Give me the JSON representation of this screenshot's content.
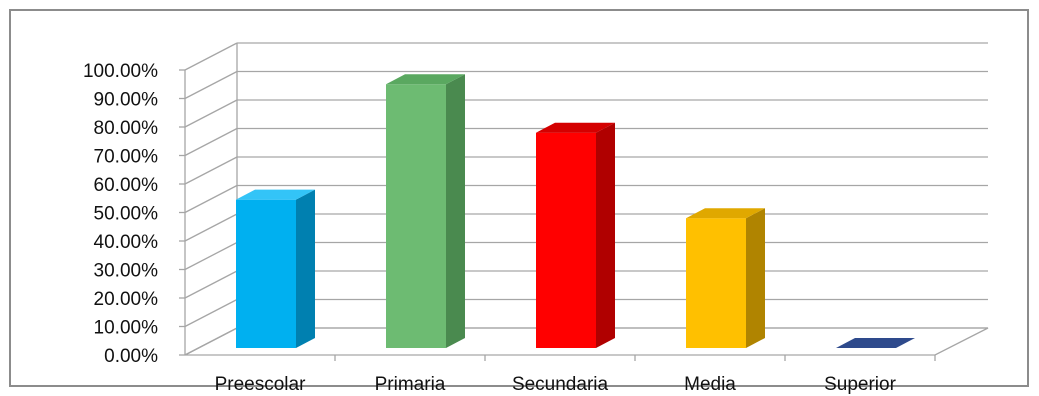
{
  "chart_data": {
    "type": "bar",
    "title": "",
    "xlabel": "",
    "ylabel": "",
    "categories": [
      "Preescolar",
      "Primaria",
      "Secundaria",
      "Media",
      "Superior"
    ],
    "values": [
      54.5,
      95.0,
      78.0,
      48.0,
      0.5
    ],
    "ylim": [
      0,
      100
    ],
    "yticks": [
      "0.00%",
      "10.00%",
      "20.00%",
      "30.00%",
      "40.00%",
      "50.00%",
      "60.00%",
      "70.00%",
      "80.00%",
      "90.00%",
      "100.00%"
    ],
    "grid": true,
    "style": "3d-column",
    "colors": {
      "Preescolar": {
        "front": "#00b0f0",
        "side": "#0080b0",
        "top": "#33c4f7"
      },
      "Primaria": {
        "front": "#6dbb72",
        "side": "#4a8a4f",
        "top": "#5aa860"
      },
      "Secundaria": {
        "front": "#ff0000",
        "side": "#b00000",
        "top": "#d40000"
      },
      "Media": {
        "front": "#ffc000",
        "side": "#b08400",
        "top": "#e0a800"
      },
      "Superior": {
        "front": "#2e4a8c",
        "side": "#1f3366",
        "top": "#2e4a8c"
      }
    }
  }
}
